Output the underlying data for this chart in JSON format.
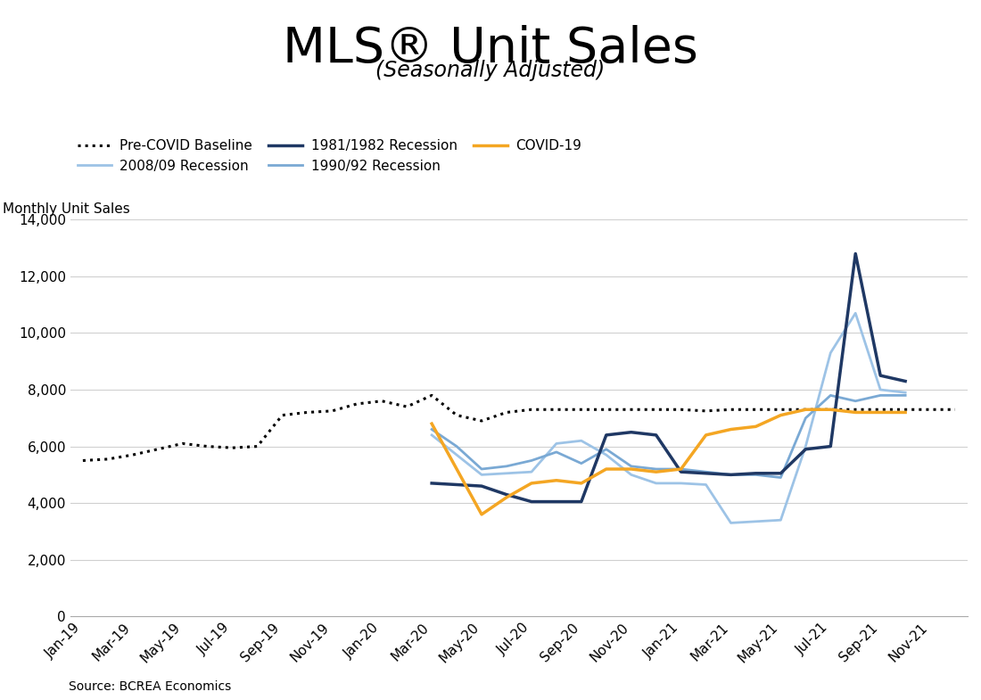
{
  "title": "MLS® Unit Sales",
  "subtitle": "(Seasonally Adjusted)",
  "ylabel": "Monthly Unit Sales",
  "source": "Source: BCREA Economics",
  "tick_labels": [
    "Jan-19",
    "Mar-19",
    "May-19",
    "Jul-19",
    "Sep-19",
    "Nov-19",
    "Jan-20",
    "Mar-20",
    "May-20",
    "Jul-20",
    "Sep-20",
    "Nov-20",
    "Jan-21",
    "Mar-21",
    "May-21",
    "Jul-21",
    "Sep-21",
    "Nov-21"
  ],
  "pre_covid_x": [
    0,
    1,
    2,
    3,
    4,
    5,
    6,
    7,
    8,
    9,
    10,
    11,
    12,
    13,
    14,
    15,
    16,
    17,
    18,
    19,
    20,
    21,
    22,
    23,
    24,
    25,
    26,
    27,
    28,
    29,
    30,
    31,
    32,
    33,
    34,
    35
  ],
  "pre_covid_y": [
    5500,
    5550,
    5700,
    5900,
    6100,
    6000,
    5950,
    6000,
    7100,
    7200,
    7250,
    7500,
    7600,
    7400,
    7800,
    7100,
    6900,
    7200,
    7300,
    7300,
    7300,
    7300,
    7300,
    7300,
    7300,
    7250,
    7300,
    7300,
    7300,
    7300,
    7300,
    7300,
    7300,
    7300,
    7300,
    7300
  ],
  "rec2008_x": [
    14,
    15,
    16,
    17,
    18,
    19,
    20,
    21,
    22,
    23,
    24,
    25,
    26,
    27,
    28,
    29,
    30,
    31,
    32,
    33
  ],
  "rec2008_y": [
    6400,
    5700,
    5000,
    5050,
    5100,
    6100,
    6200,
    5700,
    5000,
    4700,
    4700,
    4650,
    3300,
    3350,
    3400,
    6000,
    9300,
    10700,
    8000,
    7900
  ],
  "rec1981_x": [
    14,
    15,
    16,
    17,
    18,
    19,
    20,
    21,
    22,
    23,
    24,
    25,
    26,
    27,
    28,
    29,
    30,
    31,
    32,
    33
  ],
  "rec1981_y": [
    4700,
    4650,
    4600,
    4300,
    4050,
    4050,
    4050,
    6400,
    6500,
    6400,
    5100,
    5050,
    5000,
    5050,
    5050,
    5900,
    6000,
    12800,
    8500,
    8300
  ],
  "rec1990_x": [
    14,
    15,
    16,
    17,
    18,
    19,
    20,
    21,
    22,
    23,
    24,
    25,
    26,
    27,
    28,
    29,
    30,
    31,
    32,
    33
  ],
  "rec1990_y": [
    6600,
    6000,
    5200,
    5300,
    5500,
    5800,
    5400,
    5900,
    5300,
    5200,
    5200,
    5100,
    5000,
    5000,
    4900,
    7000,
    7800,
    7600,
    7800,
    7800
  ],
  "covid_x": [
    14,
    15,
    16,
    17,
    18,
    19,
    20,
    21,
    22,
    23,
    24,
    25,
    26,
    27,
    28,
    29,
    30,
    31,
    32,
    33
  ],
  "covid_y": [
    6800,
    5200,
    3600,
    4200,
    4700,
    4800,
    4700,
    5200,
    5200,
    5100,
    5200,
    6400,
    6600,
    6700,
    7100,
    7300,
    7300,
    7200,
    7200,
    7200
  ],
  "ylim": [
    0,
    14000
  ],
  "yticks": [
    0,
    2000,
    4000,
    6000,
    8000,
    10000,
    12000,
    14000
  ],
  "pre_covid_color": "#000000",
  "rec2008_color": "#9dc3e6",
  "rec1981_color": "#1f3864",
  "rec1990_color": "#7aa9d4",
  "covid_color": "#f4a623",
  "grid_color": "#d0d0d0",
  "title_fontsize": 40,
  "subtitle_fontsize": 17,
  "legend_fontsize": 11,
  "tick_fontsize": 11,
  "ylabel_fontsize": 11,
  "source_fontsize": 10
}
